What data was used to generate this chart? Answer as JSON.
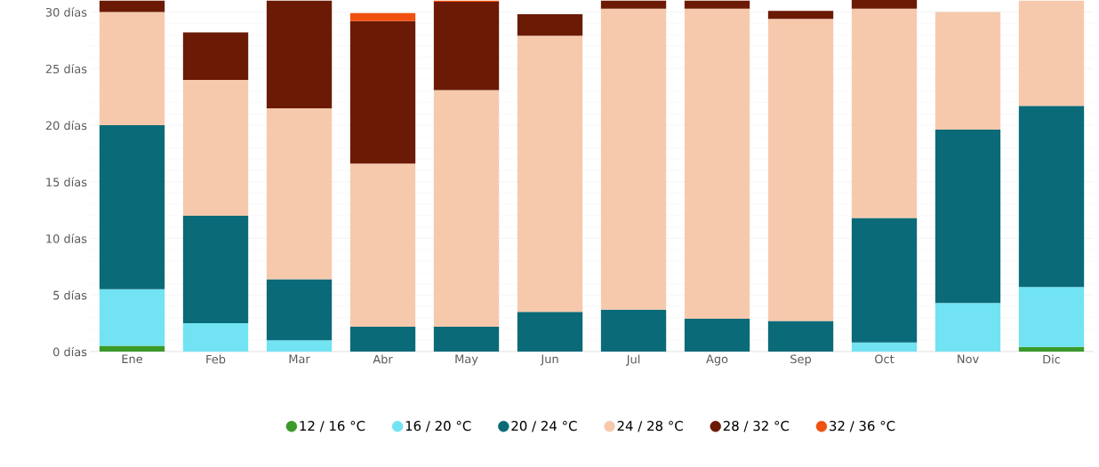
{
  "chart_data": {
    "type": "bar",
    "stacked": true,
    "categories": [
      "Ene",
      "Feb",
      "Mar",
      "Abr",
      "May",
      "Jun",
      "Jul",
      "Ago",
      "Sep",
      "Oct",
      "Nov",
      "Dic"
    ],
    "series": [
      {
        "name": "12 / 16 °C",
        "color": "#3a9a2a",
        "values": [
          0.5,
          null,
          null,
          null,
          null,
          null,
          null,
          null,
          null,
          null,
          null,
          0.4
        ]
      },
      {
        "name": "16 / 20 °C",
        "color": "#72e3f2",
        "values": [
          5,
          2.5,
          1,
          null,
          null,
          null,
          null,
          null,
          null,
          0.8,
          4.3,
          5.3
        ]
      },
      {
        "name": "20 / 24 °C",
        "color": "#0b6a77",
        "values": [
          14.5,
          9.5,
          5.4,
          2.2,
          2.2,
          3.5,
          3.7,
          2.9,
          2.7,
          11,
          15.3,
          16
        ]
      },
      {
        "name": "24 / 28 °C",
        "color": "#f6c9ad",
        "values": [
          10,
          12,
          15.1,
          14.4,
          20.9,
          24.4,
          26.6,
          27.4,
          26.7,
          18.5,
          10.4,
          9.3
        ]
      },
      {
        "name": "28 / 32 °C",
        "color": "#6b1a05",
        "values": [
          1,
          4.2,
          9.5,
          12.6,
          7.8,
          1.9,
          0.7,
          0.7,
          0.7,
          0.8,
          null,
          null
        ]
      },
      {
        "name": "32 / 36 °C",
        "color": "#f05010",
        "values": [
          null,
          null,
          null,
          0.7,
          0.1,
          null,
          null,
          null,
          null,
          null,
          null,
          null
        ]
      }
    ],
    "ylim": [
      0,
      31.3
    ],
    "yticks": [
      {
        "value": 0,
        "label": "0 días"
      },
      {
        "value": 5,
        "label": "5 días"
      },
      {
        "value": 10,
        "label": "10 días"
      },
      {
        "value": 15,
        "label": "15 días"
      },
      {
        "value": 20,
        "label": "20 días"
      },
      {
        "value": 25,
        "label": "25 días"
      },
      {
        "value": 30,
        "label": "30 días"
      }
    ],
    "grid": "y",
    "legend": "bottom",
    "marker": "circle"
  }
}
